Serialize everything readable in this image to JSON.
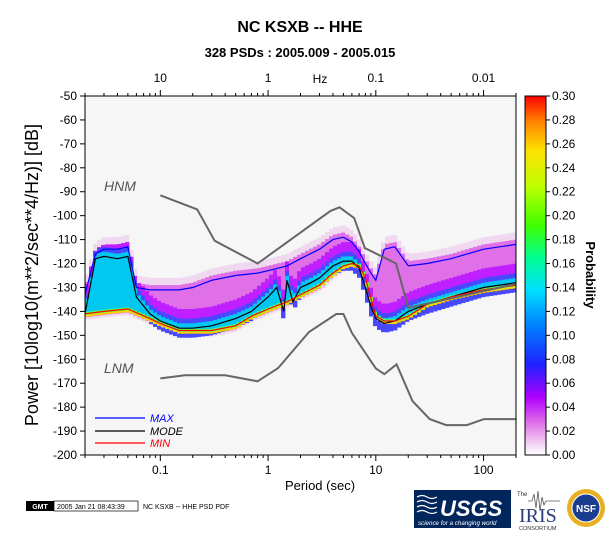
{
  "header": {
    "title": "NC KSXB -- HHE",
    "subtitle": "328 PSDs : 2005.009 - 2005.015"
  },
  "reference_curves": {
    "high": "HNM",
    "low": "LNM"
  },
  "legend": {
    "max": "MAX",
    "mode": "MODE",
    "min": "MIN"
  },
  "colorbar": {
    "label": "Probability",
    "ticks": [
      "0.00",
      "0.02",
      "0.04",
      "0.06",
      "0.08",
      "0.10",
      "0.12",
      "0.14",
      "0.16",
      "0.18",
      "0.20",
      "0.22",
      "0.24",
      "0.26",
      "0.28",
      "0.30"
    ]
  },
  "footer": {
    "gmt": "GMT",
    "timestamp": "2005 Jan 21 08:43:39",
    "caption": "NC KSXB -- HHE PSD PDF"
  },
  "logos": {
    "usgs": "USGS",
    "usgs_tagline": "science for a changing world",
    "iris": "IRIS",
    "iris_prefix": "The",
    "iris_sub": "CONSORTIUM",
    "nsf": "NSF"
  },
  "colors": {
    "max": "#0000ff",
    "mode": "#000000",
    "min": "#ff0000",
    "noise_models": "#666666"
  },
  "chart_data": {
    "type": "heatmap",
    "xlabel": "Period (sec)",
    "ylabel": "Power [10log10(m**2/sec**4/Hz)] [dB]",
    "top_axis_unit": "Hz",
    "xscale": "log",
    "xlim": [
      0.02,
      200
    ],
    "ylim": [
      -200,
      -50
    ],
    "x_ticks": [
      0.1,
      1,
      10,
      100
    ],
    "x_tick_labels": [
      "0.1",
      "1",
      "10",
      "100"
    ],
    "top_ticks_hz": [
      10,
      1,
      0.1,
      0.01
    ],
    "top_tick_labels": [
      "10",
      "1",
      "0.1",
      "0.01"
    ],
    "y_ticks": [
      -50,
      -60,
      -70,
      -80,
      -90,
      -100,
      -110,
      -120,
      -130,
      -140,
      -150,
      -160,
      -170,
      -180,
      -190,
      -200
    ],
    "colorbar_range": [
      0,
      0.3
    ],
    "series": [
      {
        "name": "MAX",
        "x": [
          0.02,
          0.025,
          0.03,
          0.04,
          0.05,
          0.06,
          0.08,
          0.1,
          0.15,
          0.2,
          0.3,
          0.5,
          0.8,
          1,
          1.5,
          2,
          3,
          4,
          5,
          6,
          7,
          8,
          9,
          10,
          12,
          15,
          20,
          30,
          50,
          100,
          200
        ],
        "y": [
          -133,
          -116,
          -114,
          -114,
          -113,
          -130,
          -131,
          -131,
          -131,
          -130,
          -127,
          -125,
          -124,
          -123,
          -121,
          -118,
          -114,
          -110,
          -109,
          -111,
          -115,
          -120,
          -124,
          -127,
          -114,
          -113,
          -121,
          -120,
          -118,
          -114,
          -112
        ]
      },
      {
        "name": "MODE",
        "x": [
          0.02,
          0.025,
          0.03,
          0.04,
          0.05,
          0.06,
          0.08,
          0.1,
          0.15,
          0.2,
          0.3,
          0.5,
          0.7,
          1,
          1.2,
          1.4,
          1.5,
          1.7,
          2,
          2.5,
          3,
          4,
          5,
          6,
          7,
          8,
          9,
          10,
          12,
          15,
          20,
          30,
          50,
          100,
          200
        ],
        "y": [
          -141,
          -118,
          -117,
          -118,
          -117,
          -134,
          -141,
          -144,
          -147,
          -147,
          -146,
          -143,
          -140,
          -134,
          -130,
          -140,
          -127,
          -136,
          -130,
          -128,
          -126,
          -121,
          -119,
          -119,
          -122,
          -130,
          -138,
          -143,
          -145,
          -144,
          -140,
          -137,
          -134,
          -130,
          -128
        ]
      },
      {
        "name": "MIN",
        "x": [
          0.02,
          0.03,
          0.05,
          0.08,
          0.1,
          0.15,
          0.2,
          0.3,
          0.5,
          0.7,
          1,
          1.5,
          2,
          3,
          4,
          5,
          6,
          7,
          8,
          10,
          12,
          15,
          20,
          30,
          50,
          100,
          200
        ],
        "y": [
          -141,
          -140,
          -139,
          -143,
          -145,
          -148,
          -148,
          -148,
          -146,
          -142,
          -139,
          -136,
          -133,
          -129,
          -124,
          -121,
          -120,
          -121,
          -126,
          -142,
          -144,
          -144,
          -142,
          -137,
          -134,
          -131,
          -129
        ]
      },
      {
        "name": "HNM",
        "x": [
          0.1,
          0.22,
          0.32,
          0.8,
          3.8,
          4.6,
          6.3,
          7.9,
          15.4,
          20,
          354.8
        ],
        "y": [
          -91.5,
          -97.4,
          -110.5,
          -120,
          -98,
          -96.5,
          -101,
          -113.5,
          -120,
          -138.5,
          -126
        ]
      },
      {
        "name": "LNM",
        "x": [
          0.1,
          0.17,
          0.4,
          0.8,
          1.24,
          2.4,
          4.3,
          5,
          6,
          10,
          12,
          15.6,
          21.9,
          31.6,
          45,
          70,
          101,
          154,
          328,
          600
        ],
        "y": [
          -168,
          -166.7,
          -166.7,
          -169.2,
          -163.7,
          -148.6,
          -141.1,
          -141.1,
          -149,
          -163.8,
          -166.2,
          -162.1,
          -177.5,
          -185,
          -187.5,
          -187.5,
          -185,
          -185,
          -185,
          -185
        ]
      }
    ]
  }
}
